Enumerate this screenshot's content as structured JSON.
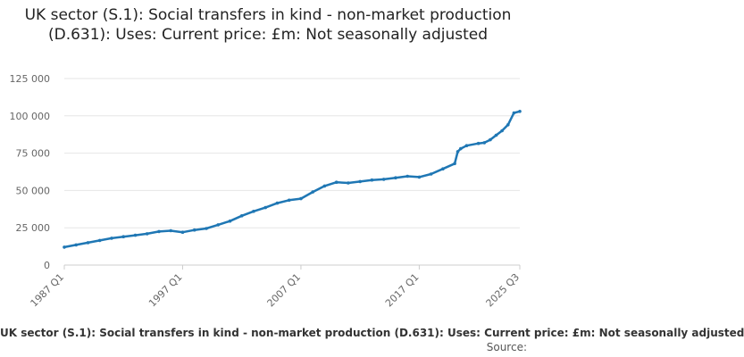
{
  "chart_data": {
    "type": "line",
    "title": "UK sector (S.1): Social transfers in kind - non-market production (D.631): Uses: Current price: £m: Not seasonally adjusted",
    "xlabel": "",
    "ylabel": "",
    "x_ticks": [
      "1987 Q1",
      "1997 Q1",
      "2007 Q1",
      "2017 Q1",
      "2025 Q3"
    ],
    "y_ticks": [
      "0",
      "25 000",
      "50 000",
      "75 000",
      "100 000",
      "125 000"
    ],
    "ylim": [
      0,
      125000
    ],
    "x_start": "1987 Q1",
    "x_end": "2025 Q3",
    "grid": true,
    "legend_text": "UK sector (S.1): Social transfers in kind - non-market production (D.631): Uses: Current price: £m: Not seasonally adjusted",
    "source_text": "Source:",
    "colors": {
      "line": "#1f77b4",
      "grid": "#e6e6e6",
      "axis": "#cccccc"
    },
    "series": [
      {
        "x": [
          "1987 Q1",
          "1988 Q1",
          "1989 Q1",
          "1990 Q1",
          "1991 Q1",
          "1992 Q1",
          "1993 Q1",
          "1994 Q1",
          "1995 Q1",
          "1996 Q1",
          "1997 Q1",
          "1998 Q1",
          "1999 Q1",
          "2000 Q1",
          "2001 Q1",
          "2002 Q1",
          "2003 Q1",
          "2004 Q1",
          "2005 Q1",
          "2006 Q1",
          "2007 Q1",
          "2008 Q1",
          "2009 Q1",
          "2010 Q1",
          "2011 Q1",
          "2012 Q1",
          "2013 Q1",
          "2014 Q1",
          "2015 Q1",
          "2016 Q1",
          "2017 Q1",
          "2018 Q1",
          "2019 Q1",
          "2020 Q1",
          "2020 Q2",
          "2020 Q3",
          "2021 Q1",
          "2022 Q1",
          "2022 Q3",
          "2023 Q1",
          "2023 Q3",
          "2024 Q1",
          "2024 Q3",
          "2025 Q1",
          "2025 Q3"
        ],
        "values": [
          12000,
          13500,
          15000,
          16500,
          18000,
          19000,
          20000,
          21000,
          22500,
          23000,
          22000,
          23500,
          24500,
          27000,
          29500,
          33000,
          36000,
          38500,
          41500,
          43500,
          44500,
          49000,
          53000,
          55500,
          55000,
          56000,
          57000,
          57500,
          58500,
          59500,
          59000,
          61000,
          64500,
          68000,
          76000,
          78000,
          80000,
          81500,
          82000,
          84000,
          87000,
          90000,
          94000,
          102000,
          103000
        ]
      }
    ]
  }
}
